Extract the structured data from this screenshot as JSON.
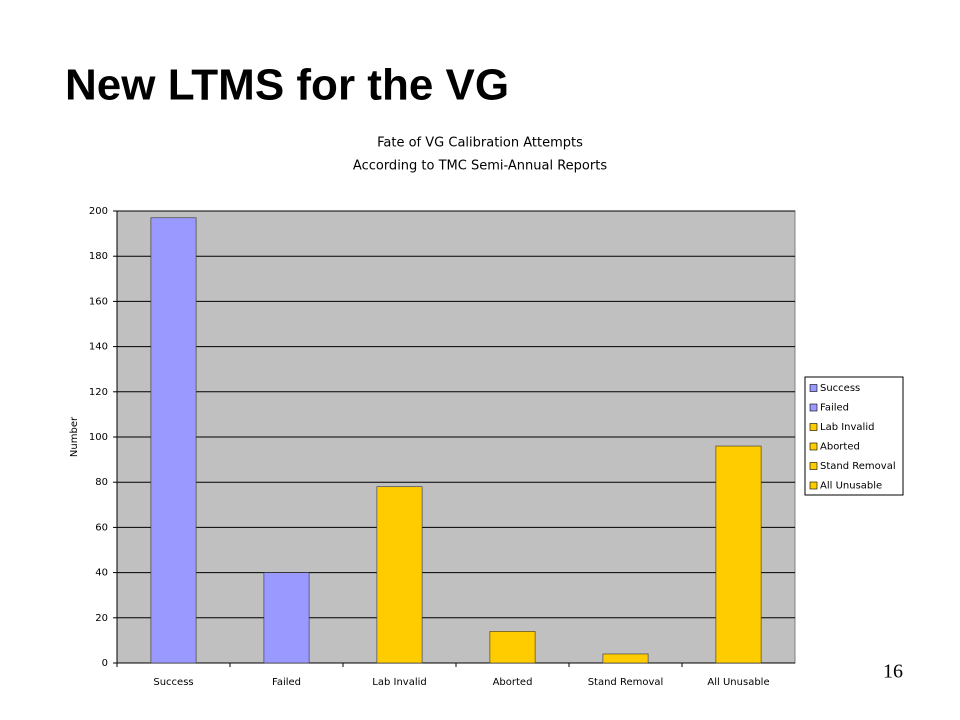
{
  "slide": {
    "title": "New LTMS for the VG",
    "page_number": "16"
  },
  "chart_data": {
    "type": "bar",
    "title": "Fate of VG Calibration Attempts",
    "subtitle": "According to TMC Semi-Annual Reports",
    "y_label": "Number",
    "categories": [
      "Success",
      "Failed",
      "Lab Invalid",
      "Aborted",
      "Stand Removal",
      "All Unusable"
    ],
    "values": [
      197,
      40,
      78,
      14,
      4,
      96
    ],
    "colors": [
      "#9999ff",
      "#9999ff",
      "#ffcc00",
      "#ffcc00",
      "#ffcc00",
      "#ffcc00"
    ],
    "ylim": [
      0,
      200
    ],
    "yticks": [
      0,
      20,
      40,
      60,
      80,
      100,
      120,
      140,
      160,
      180,
      200
    ],
    "grid": true,
    "legend": "right"
  }
}
